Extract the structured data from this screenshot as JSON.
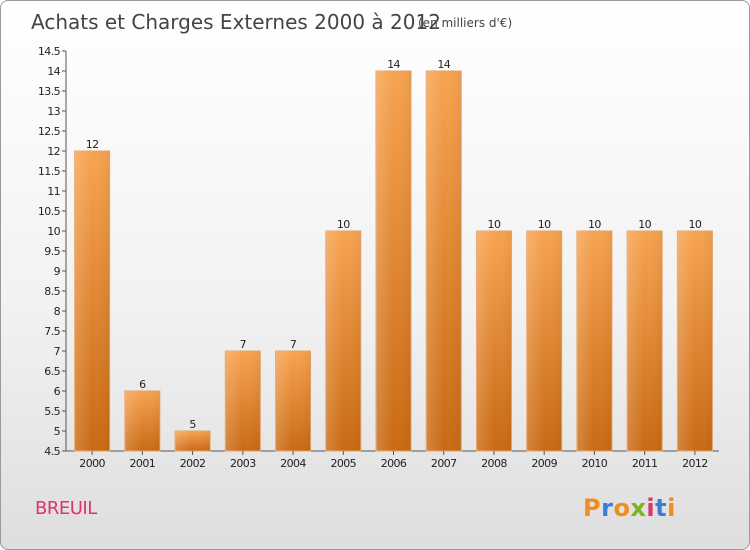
{
  "header": {
    "title": "Achats et Charges Externes 2000 à 2012",
    "subtitle": "(en milliers d'€)"
  },
  "footer": {
    "location": "BREUIL",
    "location_color": "#e0336a",
    "logo_text": "Proxiti",
    "logo_colors": [
      "#f28c1e",
      "#3a7fd4",
      "#f28c1e",
      "#7ab51d",
      "#e0336a",
      "#3a7fd4",
      "#f28c1e"
    ]
  },
  "chart_data": {
    "type": "bar",
    "title": "Achats et Charges Externes 2000 à 2012",
    "subtitle": "(en milliers d'€)",
    "categories": [
      "2000",
      "2001",
      "2002",
      "2003",
      "2004",
      "2005",
      "2006",
      "2007",
      "2008",
      "2009",
      "2010",
      "2011",
      "2012"
    ],
    "values": [
      12,
      6,
      5,
      7,
      7,
      10,
      14,
      14,
      10,
      10,
      10,
      10,
      10
    ],
    "data_labels": [
      "12",
      "6",
      "5",
      "7",
      "7",
      "10",
      "14",
      "14",
      "10",
      "10",
      "10",
      "10",
      "10"
    ],
    "ylim": [
      4.5,
      14.5
    ],
    "yticks": [
      "4.5",
      "5",
      "5.5",
      "6",
      "6.5",
      "7",
      "7.5",
      "8",
      "8.5",
      "9",
      "9.5",
      "10",
      "10.5",
      "11",
      "11.5",
      "12",
      "12.5",
      "13",
      "13.5",
      "14",
      "14.5"
    ],
    "grid": false,
    "legend": "none",
    "bar_color_top": "#f7a350",
    "bar_color_bottom": "#c96a14"
  }
}
